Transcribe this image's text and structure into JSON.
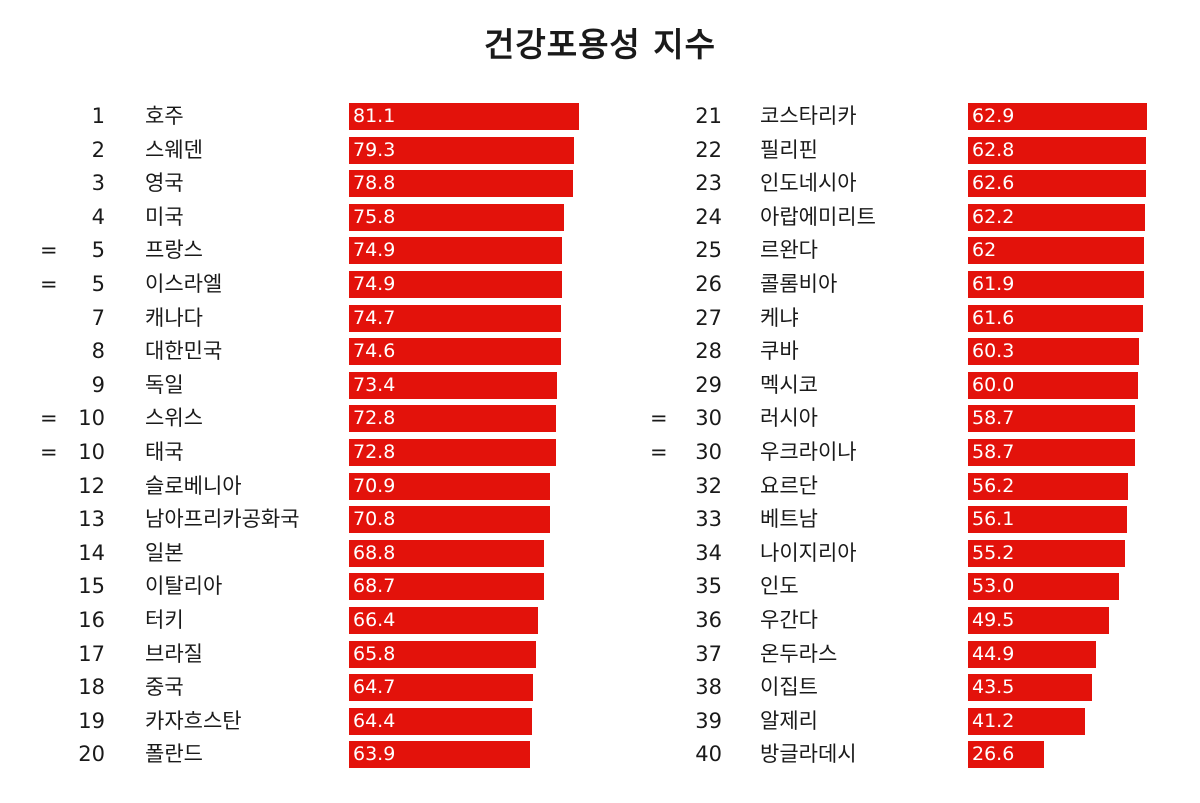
{
  "chart_data": {
    "type": "bar",
    "title": "건강포용성 지수",
    "orientation": "horizontal",
    "bar_color": "#e3120b",
    "xlim": [
      0,
      100
    ],
    "rows": [
      {
        "rank": "1",
        "tied": false,
        "country": "호주",
        "value": 81.1,
        "label": "81.1"
      },
      {
        "rank": "2",
        "tied": false,
        "country": "스웨덴",
        "value": 79.3,
        "label": "79.3"
      },
      {
        "rank": "3",
        "tied": false,
        "country": "영국",
        "value": 78.8,
        "label": "78.8"
      },
      {
        "rank": "4",
        "tied": false,
        "country": "미국",
        "value": 75.8,
        "label": "75.8"
      },
      {
        "rank": "5",
        "tied": true,
        "country": "프랑스",
        "value": 74.9,
        "label": "74.9"
      },
      {
        "rank": "5",
        "tied": true,
        "country": "이스라엘",
        "value": 74.9,
        "label": "74.9"
      },
      {
        "rank": "7",
        "tied": false,
        "country": "캐나다",
        "value": 74.7,
        "label": "74.7"
      },
      {
        "rank": "8",
        "tied": false,
        "country": "대한민국",
        "value": 74.6,
        "label": "74.6"
      },
      {
        "rank": "9",
        "tied": false,
        "country": "독일",
        "value": 73.4,
        "label": "73.4"
      },
      {
        "rank": "10",
        "tied": true,
        "country": "스위스",
        "value": 72.8,
        "label": "72.8"
      },
      {
        "rank": "10",
        "tied": true,
        "country": "태국",
        "value": 72.8,
        "label": "72.8"
      },
      {
        "rank": "12",
        "tied": false,
        "country": "슬로베니아",
        "value": 70.9,
        "label": "70.9"
      },
      {
        "rank": "13",
        "tied": false,
        "country": "남아프리카공화국",
        "value": 70.8,
        "label": "70.8"
      },
      {
        "rank": "14",
        "tied": false,
        "country": "일본",
        "value": 68.8,
        "label": "68.8"
      },
      {
        "rank": "15",
        "tied": false,
        "country": "이탈리아",
        "value": 68.7,
        "label": "68.7"
      },
      {
        "rank": "16",
        "tied": false,
        "country": "터키",
        "value": 66.4,
        "label": "66.4"
      },
      {
        "rank": "17",
        "tied": false,
        "country": "브라질",
        "value": 65.8,
        "label": "65.8"
      },
      {
        "rank": "18",
        "tied": false,
        "country": "중국",
        "value": 64.7,
        "label": "64.7"
      },
      {
        "rank": "19",
        "tied": false,
        "country": "카자흐스탄",
        "value": 64.4,
        "label": "64.4"
      },
      {
        "rank": "20",
        "tied": false,
        "country": "폴란드",
        "value": 63.9,
        "label": "63.9"
      },
      {
        "rank": "21",
        "tied": false,
        "country": "코스타리카",
        "value": 62.9,
        "label": "62.9"
      },
      {
        "rank": "22",
        "tied": false,
        "country": "필리핀",
        "value": 62.8,
        "label": "62.8"
      },
      {
        "rank": "23",
        "tied": false,
        "country": "인도네시아",
        "value": 62.6,
        "label": "62.6"
      },
      {
        "rank": "24",
        "tied": false,
        "country": "아랍에미리트",
        "value": 62.2,
        "label": "62.2"
      },
      {
        "rank": "25",
        "tied": false,
        "country": "르완다",
        "value": 62.0,
        "label": "62"
      },
      {
        "rank": "26",
        "tied": false,
        "country": "콜롬비아",
        "value": 61.9,
        "label": "61.9"
      },
      {
        "rank": "27",
        "tied": false,
        "country": "케냐",
        "value": 61.6,
        "label": "61.6"
      },
      {
        "rank": "28",
        "tied": false,
        "country": "쿠바",
        "value": 60.3,
        "label": "60.3"
      },
      {
        "rank": "29",
        "tied": false,
        "country": "멕시코",
        "value": 60.0,
        "label": "60.0"
      },
      {
        "rank": "30",
        "tied": true,
        "country": "러시아",
        "value": 58.7,
        "label": "58.7"
      },
      {
        "rank": "30",
        "tied": true,
        "country": "우크라이나",
        "value": 58.7,
        "label": "58.7"
      },
      {
        "rank": "32",
        "tied": false,
        "country": "요르단",
        "value": 56.2,
        "label": "56.2"
      },
      {
        "rank": "33",
        "tied": false,
        "country": "베트남",
        "value": 56.1,
        "label": "56.1"
      },
      {
        "rank": "34",
        "tied": false,
        "country": "나이지리아",
        "value": 55.2,
        "label": "55.2"
      },
      {
        "rank": "35",
        "tied": false,
        "country": "인도",
        "value": 53.0,
        "label": "53.0"
      },
      {
        "rank": "36",
        "tied": false,
        "country": "우간다",
        "value": 49.5,
        "label": "49.5"
      },
      {
        "rank": "37",
        "tied": false,
        "country": "온두라스",
        "value": 44.9,
        "label": "44.9"
      },
      {
        "rank": "38",
        "tied": false,
        "country": "이집트",
        "value": 43.5,
        "label": "43.5"
      },
      {
        "rank": "39",
        "tied": false,
        "country": "알제리",
        "value": 41.2,
        "label": "41.2"
      },
      {
        "rank": "40",
        "tied": false,
        "country": "방글라데시",
        "value": 26.6,
        "label": "26.6"
      }
    ],
    "tie_symbol": "="
  }
}
